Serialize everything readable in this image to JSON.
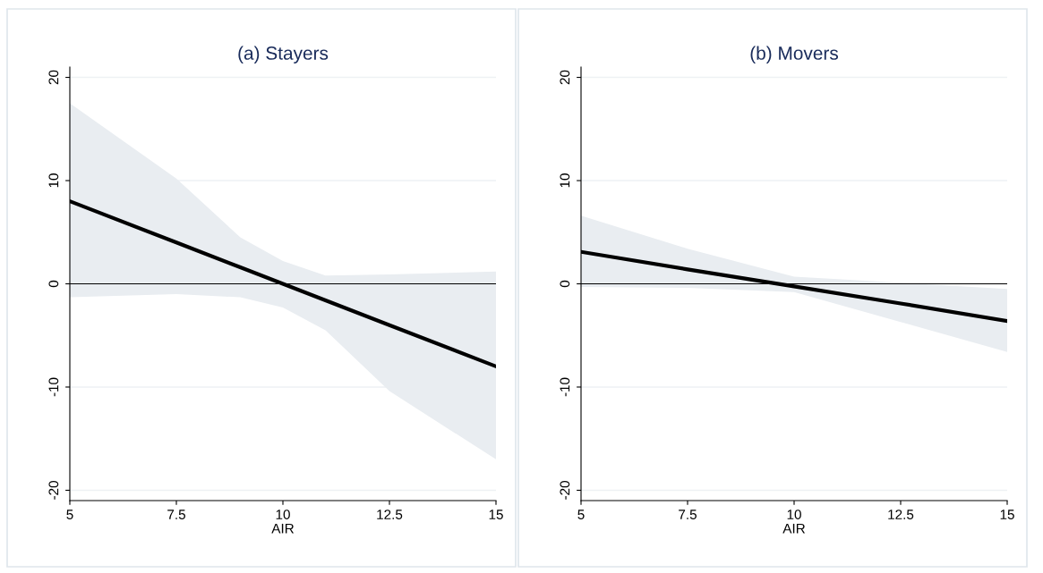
{
  "chart_data": [
    {
      "type": "line",
      "title": "(a) Stayers",
      "xlabel": "AIR",
      "xlim": [
        5,
        15
      ],
      "xticks": [
        5,
        7.5,
        10,
        12.5,
        15
      ],
      "ylim": [
        -21,
        21
      ],
      "yticks": [
        -20,
        -10,
        0,
        10,
        20
      ],
      "grid": "y",
      "ref_lines": [
        {
          "axis": "y",
          "value": 0,
          "color": "#000000"
        }
      ],
      "series": [
        {
          "color": "#000000",
          "x": [
            5,
            7.5,
            9,
            10,
            11,
            12.5,
            15
          ],
          "values": [
            8,
            4,
            1.6,
            0,
            -1.6,
            -4,
            -8
          ],
          "lower": [
            -1.3,
            -1.0,
            -1.3,
            -2.3,
            -4.5,
            -10.4,
            -17.0
          ],
          "upper": [
            17.5,
            10.2,
            4.5,
            2.2,
            0.8,
            0.9,
            1.2
          ]
        }
      ]
    },
    {
      "type": "line",
      "title": "(b) Movers",
      "xlabel": "AIR",
      "xlim": [
        5,
        15
      ],
      "xticks": [
        5,
        7.5,
        10,
        12.5,
        15
      ],
      "ylim": [
        -21,
        21
      ],
      "yticks": [
        -20,
        -10,
        0,
        10,
        20
      ],
      "grid": "y",
      "ref_lines": [
        {
          "axis": "y",
          "value": 0,
          "color": "#000000"
        }
      ],
      "series": [
        {
          "color": "#000000",
          "x": [
            5,
            7.5,
            10,
            12.5,
            15
          ],
          "values": [
            3.1,
            1.4,
            -0.25,
            -1.9,
            -3.6
          ],
          "lower": [
            -0.3,
            -0.4,
            -0.8,
            -3.7,
            -6.6
          ],
          "upper": [
            6.6,
            3.4,
            0.7,
            0.1,
            -0.5
          ]
        }
      ]
    }
  ]
}
